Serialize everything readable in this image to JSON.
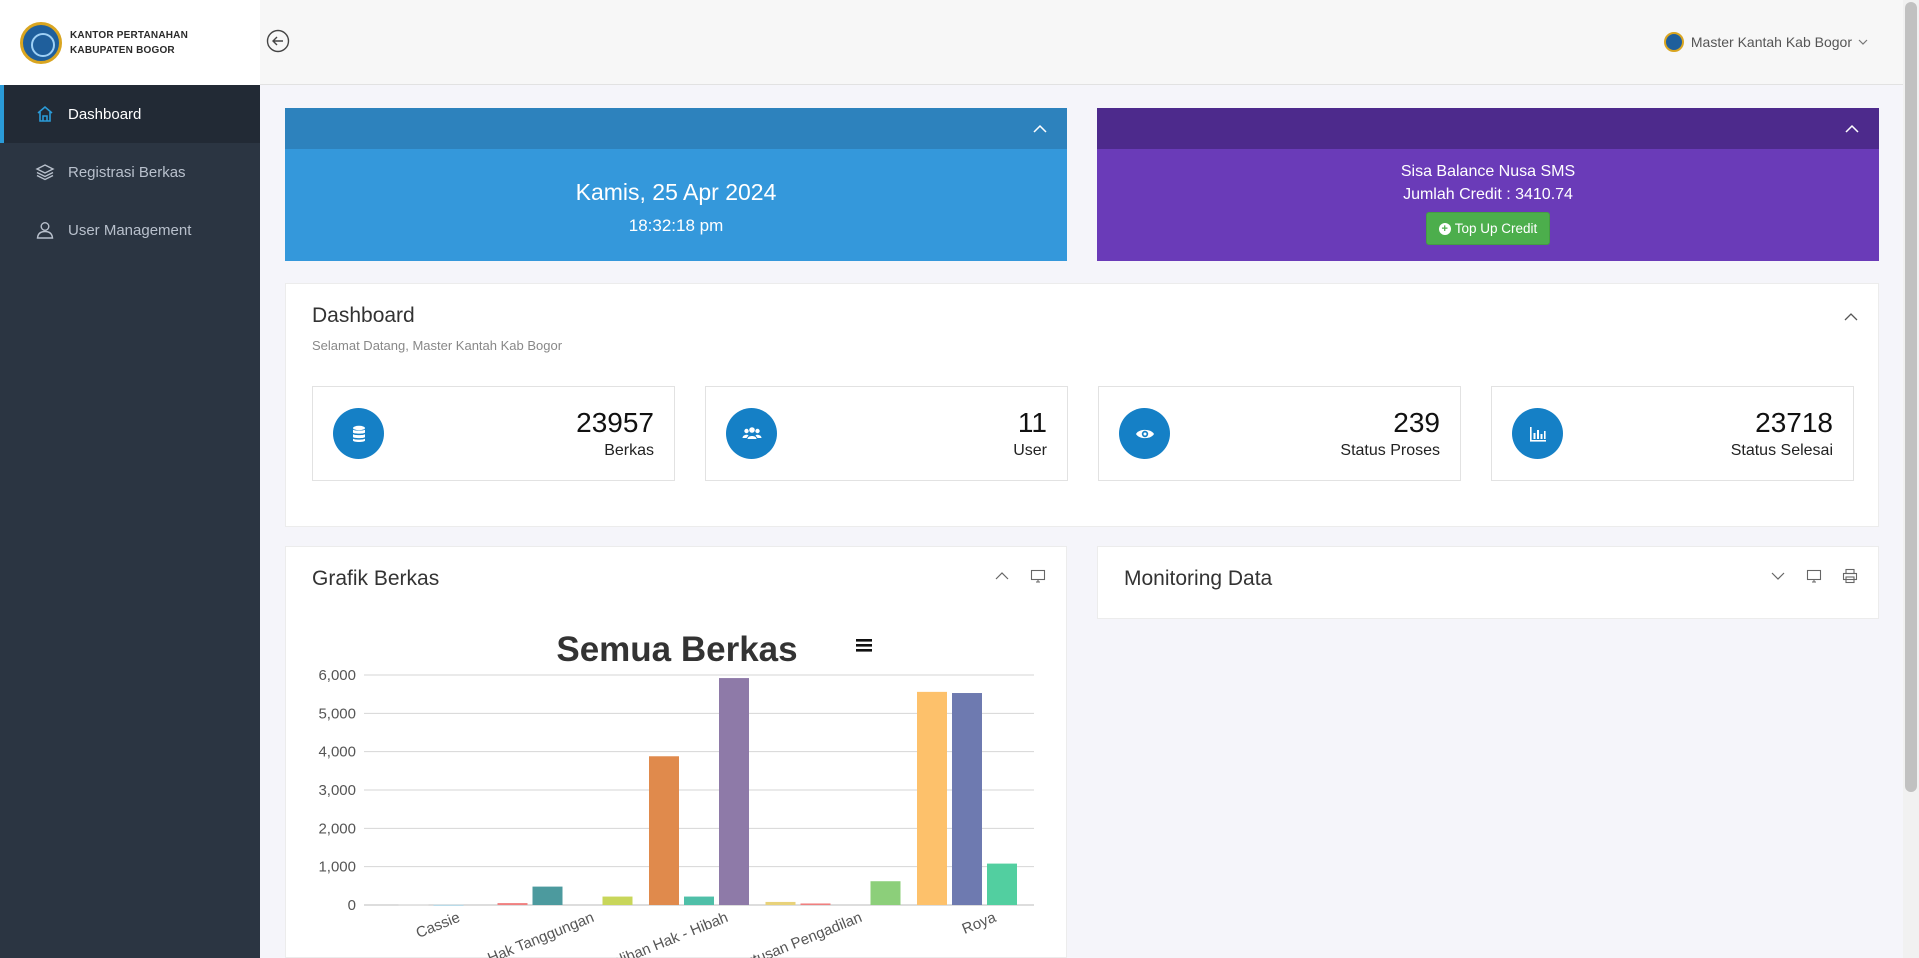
{
  "brand": {
    "line1": "KANTOR PERTANAHAN",
    "line2": "KABUPATEN BOGOR"
  },
  "sidebar": {
    "items": [
      {
        "label": "Dashboard",
        "icon": "home-icon",
        "active": true
      },
      {
        "label": "Registrasi Berkas",
        "icon": "layers-icon",
        "active": false
      },
      {
        "label": "User Management",
        "icon": "user-icon",
        "active": false
      }
    ]
  },
  "header": {
    "user_name": "Master Kantah Kab Bogor"
  },
  "date_card": {
    "date": "Kamis, 25 Apr 2024",
    "time": "18:32:18 pm"
  },
  "sms_card": {
    "title": "Sisa Balance Nusa SMS",
    "credit": "Jumlah Credit : 3410.74",
    "button": "Top Up Credit"
  },
  "dashboard": {
    "title": "Dashboard",
    "subtitle": "Selamat Datang, Master Kantah Kab Bogor",
    "stats": [
      {
        "value": "23957",
        "label": "Berkas",
        "icon": "database-icon"
      },
      {
        "value": "11",
        "label": "User",
        "icon": "users-icon"
      },
      {
        "value": "239",
        "label": "Status Proses",
        "icon": "eye-icon"
      },
      {
        "value": "23718",
        "label": "Status Selesai",
        "icon": "bar-chart-icon"
      }
    ]
  },
  "grafik": {
    "title": "Grafik Berkas"
  },
  "monitoring": {
    "title": "Monitoring Data"
  },
  "colors": {
    "primary_blue": "#3498db",
    "purple": "#6a3bb8",
    "sidebar": "#2b3542",
    "green": "#4cae4c",
    "stat_icon": "#1580c6"
  },
  "chart_data": {
    "type": "bar",
    "title": "Semua Berkas",
    "ylim": [
      0,
      6000
    ],
    "yticks": [
      "0",
      "1,000",
      "2,000",
      "3,000",
      "4,000",
      "5,000",
      "6,000"
    ],
    "categories": [
      "Cassie",
      "Hak Tanggungan",
      "Peralihan Hak - Hibah",
      "Putusan Pengadilan",
      "Roya"
    ],
    "bars": [
      {
        "category_index": 0,
        "value": 10,
        "color": "#cfcfcf"
      },
      {
        "category_index": 0,
        "value": 5,
        "color": "#aad4e6"
      },
      {
        "category_index": 1,
        "value": 50,
        "color": "#f08080"
      },
      {
        "category_index": 1,
        "value": 480,
        "color": "#4c9a9e"
      },
      {
        "category_index": 1,
        "value": 0,
        "color": "#999999"
      },
      {
        "category_index": 1,
        "value": 220,
        "color": "#c8d65a"
      },
      {
        "category_index": 2,
        "value": 3880,
        "color": "#e08a4c"
      },
      {
        "category_index": 2,
        "value": 220,
        "color": "#4fbfa8"
      },
      {
        "category_index": 2,
        "value": 5920,
        "color": "#8e7aa8"
      },
      {
        "category_index": 3,
        "value": 80,
        "color": "#e8d27a"
      },
      {
        "category_index": 3,
        "value": 40,
        "color": "#f07f7f"
      },
      {
        "category_index": 3,
        "value": 0,
        "color": "#999999"
      },
      {
        "category_index": 3,
        "value": 620,
        "color": "#8ccf7a"
      },
      {
        "category_index": 4,
        "value": 5560,
        "color": "#fdc16b"
      },
      {
        "category_index": 4,
        "value": 5530,
        "color": "#6e7ab0"
      },
      {
        "category_index": 4,
        "value": 1080,
        "color": "#52cfa0"
      }
    ]
  }
}
